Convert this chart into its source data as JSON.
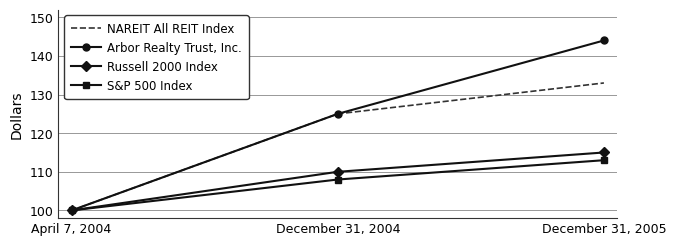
{
  "x_labels": [
    "April 7, 2004",
    "December 31, 2004",
    "December 31, 2005"
  ],
  "x_positions": [
    0,
    1,
    2
  ],
  "series": [
    {
      "label": "NAREIT All REIT Index",
      "values": [
        100,
        125,
        133
      ],
      "linestyle": "--",
      "marker": null,
      "color": "#333333",
      "linewidth": 1.2
    },
    {
      "label": "Arbor Realty Trust, Inc.",
      "values": [
        100,
        125,
        144
      ],
      "linestyle": "-",
      "marker": "o",
      "color": "#111111",
      "linewidth": 1.5
    },
    {
      "label": "Russell 2000 Index",
      "values": [
        100,
        110,
        115
      ],
      "linestyle": "-",
      "marker": "D",
      "color": "#111111",
      "linewidth": 1.5
    },
    {
      "label": "S&P 500 Index",
      "values": [
        100,
        108,
        113
      ],
      "linestyle": "-",
      "marker": "s",
      "color": "#111111",
      "linewidth": 1.5
    }
  ],
  "ylabel": "Dollars",
  "ylim": [
    98,
    152
  ],
  "yticks": [
    100,
    110,
    120,
    130,
    140,
    150
  ],
  "grid_color": "#888888",
  "background_color": "#ffffff",
  "legend_loc": "upper left",
  "legend_fontsize": 8.5,
  "axis_fontsize": 9,
  "ylabel_fontsize": 10,
  "marker_size": 5
}
